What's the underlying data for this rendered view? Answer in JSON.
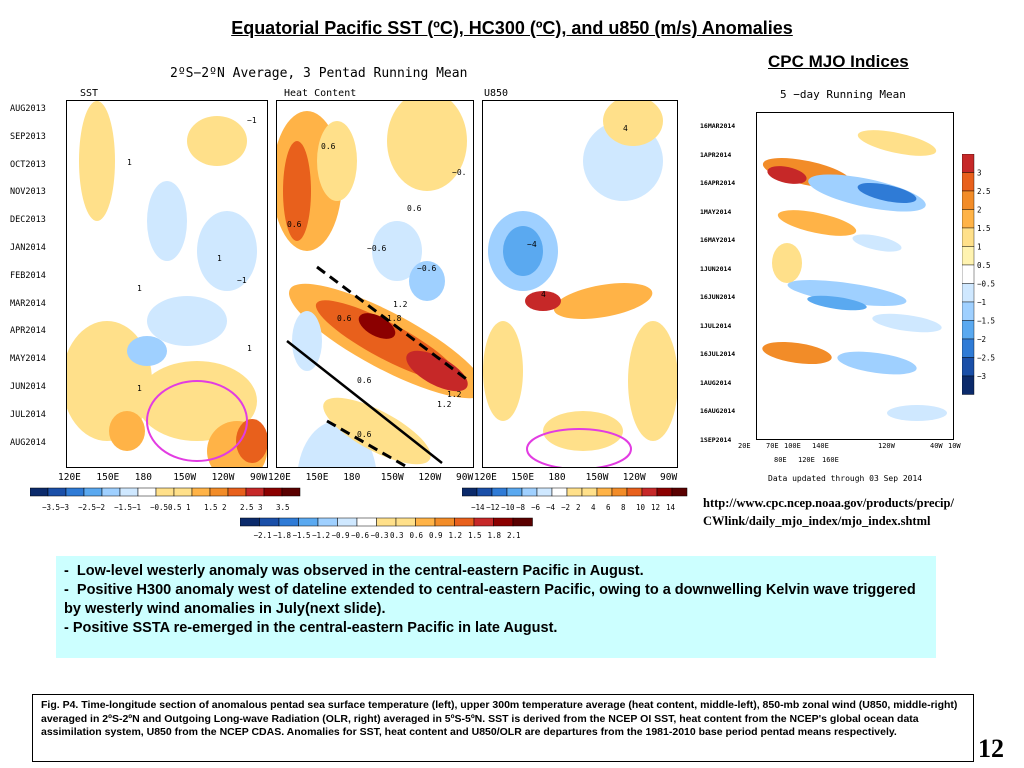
{
  "title": "Equatorial Pacific SST (ºC), HC300 (ºC), and u850  (m/s) Anomalies",
  "cpc_title": "CPC MJO Indices",
  "chart_data": [
    {
      "type": "heatmap",
      "title": "2ºS−2ºN Average, 3 Pentad Running Mean",
      "panels": [
        "SST",
        "Heat Content",
        "U850"
      ],
      "y_ticks": [
        "AUG2013",
        "SEP2013",
        "OCT2013",
        "NOV2013",
        "DEC2013",
        "JAN2014",
        "FEB2014",
        "MAR2014",
        "APR2014",
        "MAY2014",
        "JUN2014",
        "JUL2014",
        "AUG2014"
      ],
      "x_ticks": [
        "120E",
        "150E",
        "180",
        "150W",
        "120W",
        "90W"
      ],
      "sst_colorbar": [
        "−3.5",
        "−3",
        "−2.5",
        "−2",
        "−1.5",
        "−1",
        "−0.5",
        "0.5",
        "1",
        "1.5",
        "2",
        "2.5",
        "3",
        "3.5"
      ],
      "hc_colorbar": [
        "−2.1",
        "−1.8",
        "−1.5",
        "−1.2",
        "−0.9",
        "−0.6",
        "−0.3",
        "0.3",
        "0.6",
        "0.9",
        "1.2",
        "1.5",
        "1.8",
        "2.1"
      ],
      "u850_colorbar": [
        "−14",
        "−12",
        "−10",
        "−8",
        "−6",
        "−4",
        "−2",
        "2",
        "4",
        "6",
        "8",
        "10",
        "12",
        "14"
      ],
      "contour_labels_sst": [
        "−1",
        "1",
        "1",
        "1",
        "−1",
        "1",
        "1"
      ],
      "contour_labels_hc": [
        "0.6",
        "0.6",
        "0.6",
        "−0.6",
        "1.2",
        "1.8",
        "0.6",
        "1.2",
        "0.6",
        "1.2",
        "0.6",
        "−0.6",
        "−0."
      ],
      "contour_labels_u850": [
        "4",
        "−4",
        "4"
      ]
    },
    {
      "type": "heatmap",
      "title": "5 −day Running Mean",
      "y_ticks": [
        "16MAR2014",
        "1APR2014",
        "16APR2014",
        "1MAY2014",
        "16MAY2014",
        "1JUN2014",
        "16JUN2014",
        "1JUL2014",
        "16JUL2014",
        "1AUG2014",
        "16AUG2014",
        "1SEP2014"
      ],
      "x_ticks_top": [
        "20E",
        "70E",
        "100E",
        "140E",
        "120W",
        "40W",
        "10W"
      ],
      "x_ticks_bottom": [
        "80E",
        "120E",
        "160E"
      ],
      "colorbar": [
        "3",
        "2.5",
        "2",
        "1.5",
        "1",
        "0.5",
        "−0.5",
        "−1",
        "−1.5",
        "−2",
        "−2.5",
        "−3"
      ],
      "note": "Data updated through 03 Sep 2014"
    }
  ],
  "source": [
    "http://www.cpc.ncep.noaa.gov/products/precip/",
    "CWlink/daily_mjo_index/mjo_index.shtml"
  ],
  "notes": [
    {
      "dash": "-",
      "text": "Low-level westerly anomaly  was observed in the central-eastern Pacific in August."
    },
    {
      "dash": "-",
      "text": "Positive H300 anomaly west of dateline extended to central-eastern Pacific, owing to a downwelling Kelvin wave triggered by westerly wind anomalies in July(next slide)."
    },
    {
      "dash": "-",
      "text": "Positive SSTA re-emerged in the central-eastern Pacific in late August."
    }
  ],
  "caption": "Fig. P4. Time-longitude section of anomalous pentad sea surface temperature (left), upper 300m temperature average (heat content, middle-left), 850-mb zonal wind (U850, middle-right) averaged in 2ºS-2ºN and Outgoing Long-wave Radiation (OLR, right) averaged in 5ºS-5ºN. SST is derived from the NCEP OI SST, heat content from the NCEP's global ocean data assimilation system, U850 from the NCEP CDAS. Anomalies for SST, heat content and U850/OLR are departures from the 1981-2010 base period pentad means respectively.",
  "page_number": "12",
  "colors": {
    "warm": [
      "#ffffff",
      "#ffe08a",
      "#ffb347",
      "#f28c28",
      "#e8601c",
      "#c62828",
      "#8b0000"
    ],
    "cool": [
      "#ffffff",
      "#cfe8ff",
      "#9fd0ff",
      "#5aa9f0",
      "#2f7bd6",
      "#1a4fa8",
      "#0b2a6b"
    ],
    "annotation_circle": "#e23ce2"
  }
}
